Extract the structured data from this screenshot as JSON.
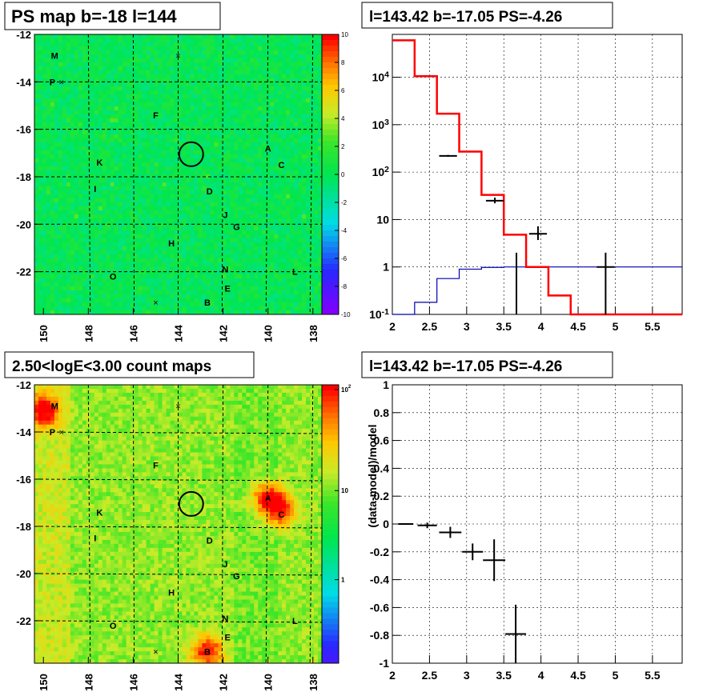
{
  "panels": {
    "map_tl_title": "PS map b=-18 l=144",
    "spec_tr_title": "l=143.42 b=-17.05 PS=-4.26",
    "map_bl_title": "2.50<logE<3.00 count maps",
    "res_br_title": "l=143.42 b=-17.05 PS=-4.26"
  },
  "chart_data": [
    {
      "type": "heatmap",
      "title": "PS map b=-18 l=144",
      "x_ticks": [
        "150",
        "148",
        "146",
        "144",
        "142",
        "140",
        "138"
      ],
      "y_ticks": [
        "-12",
        "-14",
        "-16",
        "-18",
        "-20",
        "-22"
      ],
      "xlim": [
        150.4,
        137.6
      ],
      "ylim": [
        -23.8,
        -12
      ],
      "colorbar": {
        "range": [
          -10,
          10
        ],
        "ticks": [
          "10",
          "8",
          "6",
          "4",
          "2",
          "0",
          "-2",
          "-4",
          "-6",
          "-8",
          "-10"
        ]
      },
      "sources": [
        {
          "label": "M",
          "l": 149.5,
          "b": -12.9
        },
        {
          "label": "P",
          "l": 149.6,
          "b": -14.0
        },
        {
          "label": "F",
          "l": 145.0,
          "b": -15.4
        },
        {
          "label": "A",
          "l": 140.0,
          "b": -16.8
        },
        {
          "label": "C",
          "l": 139.4,
          "b": -17.5
        },
        {
          "label": "K",
          "l": 147.5,
          "b": -17.4
        },
        {
          "label": "I",
          "l": 147.7,
          "b": -18.5
        },
        {
          "label": "D",
          "l": 142.6,
          "b": -18.6
        },
        {
          "label": "J",
          "l": 141.9,
          "b": -19.6
        },
        {
          "label": "G",
          "l": 141.4,
          "b": -20.1
        },
        {
          "label": "H",
          "l": 144.3,
          "b": -20.8
        },
        {
          "label": "N",
          "l": 141.9,
          "b": -21.9
        },
        {
          "label": "O",
          "l": 146.9,
          "b": -22.2
        },
        {
          "label": "L",
          "l": 138.8,
          "b": -22.0
        },
        {
          "label": "E",
          "l": 141.8,
          "b": -22.7
        },
        {
          "label": "B",
          "l": 142.7,
          "b": -23.3
        }
      ],
      "crosses": [
        {
          "l": 144.0,
          "b": -12.9
        },
        {
          "l": 149.2,
          "b": -14.0
        },
        {
          "l": 145.0,
          "b": -23.3
        }
      ],
      "circle": {
        "l": 143.42,
        "b": -17.05
      }
    },
    {
      "type": "line",
      "title": "l=143.42 b=-17.05 PS=-4.26",
      "x_ticks": [
        "2",
        "2.5",
        "3",
        "3.5",
        "4",
        "4.5",
        "5",
        "5.5"
      ],
      "y_ticks": [
        "10^{-1}",
        "1",
        "10",
        "10^{2}",
        "10^{3}",
        "10^{4}"
      ],
      "xlim": [
        2,
        5.9
      ],
      "ylim": [
        0.1,
        80000
      ],
      "ylog": true,
      "grid": true,
      "model_step": {
        "edges": [
          2,
          2.3,
          2.6,
          2.9,
          3.2,
          3.5,
          3.8,
          4.1,
          4.4,
          4.7,
          5.0,
          5.3,
          5.6,
          5.9
        ],
        "values": [
          60000,
          10500,
          1700,
          270,
          33,
          4.8,
          1.0,
          0.25,
          0.1,
          0.1,
          0.1,
          0.1,
          0.1
        ]
      },
      "background_step": {
        "edges": [
          2,
          2.3,
          2.6,
          2.9,
          3.2,
          3.5,
          3.8,
          4.1,
          4.4,
          4.7,
          5.0,
          5.3,
          5.6,
          5.9
        ],
        "values": [
          0.1,
          0.18,
          0.57,
          0.9,
          0.98,
          1.0,
          1.0,
          1.0,
          1.0,
          1.0,
          1.0,
          1.0,
          1.0
        ]
      },
      "data_points": [
        {
          "x": 2.75,
          "y": 220,
          "xerr": 0.12,
          "ylo": 210,
          "yhi": 230
        },
        {
          "x": 3.38,
          "y": 25,
          "xerr": 0.12,
          "ylo": 22,
          "yhi": 29
        },
        {
          "x": 3.67,
          "y": 0.1,
          "xerr": 0,
          "ylo": 0.1,
          "yhi": 2.0
        },
        {
          "x": 3.96,
          "y": 5,
          "xerr": 0.12,
          "ylo": 3.7,
          "yhi": 7.2
        },
        {
          "x": 4.87,
          "y": 1,
          "xerr": 0.12,
          "ylo": 0.1,
          "yhi": 2.0
        }
      ]
    },
    {
      "type": "heatmap",
      "title": "2.50<logE<3.00 count maps",
      "x_ticks": [
        "150",
        "148",
        "146",
        "144",
        "142",
        "140",
        "138"
      ],
      "y_ticks": [
        "-12",
        "-14",
        "-16",
        "-18",
        "-20",
        "-22"
      ],
      "xlim": [
        150.4,
        137.6
      ],
      "ylim": [
        -23.8,
        -12
      ],
      "colorbar": {
        "log": true,
        "ticks": [
          "10^{2}",
          "10",
          "1"
        ]
      },
      "hotspots": [
        {
          "label": "M",
          "l": 150.0,
          "b": -13.1,
          "strength": 1.0
        },
        {
          "label": "A",
          "l": 140.0,
          "b": -16.8,
          "strength": 1.0
        },
        {
          "label": "C",
          "l": 139.4,
          "b": -17.4,
          "strength": 0.8
        },
        {
          "label": "B",
          "l": 142.7,
          "b": -23.3,
          "strength": 1.0
        }
      ]
    },
    {
      "type": "scatter",
      "title": "l=143.42 b=-17.05 PS=-4.26",
      "ylabel": "(data-model)/model",
      "x_ticks": [
        "2",
        "2.5",
        "3",
        "3.5",
        "4",
        "4.5",
        "5",
        "5.5"
      ],
      "y_ticks": [
        "1",
        "0.8",
        "0.6",
        "0.4",
        "0.2",
        "0",
        "-0.2",
        "-0.4",
        "-0.6",
        "-0.8",
        "-1"
      ],
      "xlim": [
        2,
        5.9
      ],
      "ylim": [
        -1,
        1
      ],
      "grid": true,
      "points": [
        {
          "x": 2.18,
          "y": 0.0,
          "xerr": 0.1,
          "yerr": 0.0
        },
        {
          "x": 2.47,
          "y": -0.01,
          "xerr": 0.13,
          "yerr": 0.02
        },
        {
          "x": 2.78,
          "y": -0.06,
          "xerr": 0.15,
          "yerr": 0.04
        },
        {
          "x": 3.08,
          "y": -0.2,
          "xerr": 0.14,
          "yerr": 0.06
        },
        {
          "x": 3.37,
          "y": -0.26,
          "xerr": 0.15,
          "yerr": 0.15
        },
        {
          "x": 3.66,
          "y": -0.79,
          "xerr": 0.14,
          "yerr": 0.21
        }
      ]
    }
  ]
}
